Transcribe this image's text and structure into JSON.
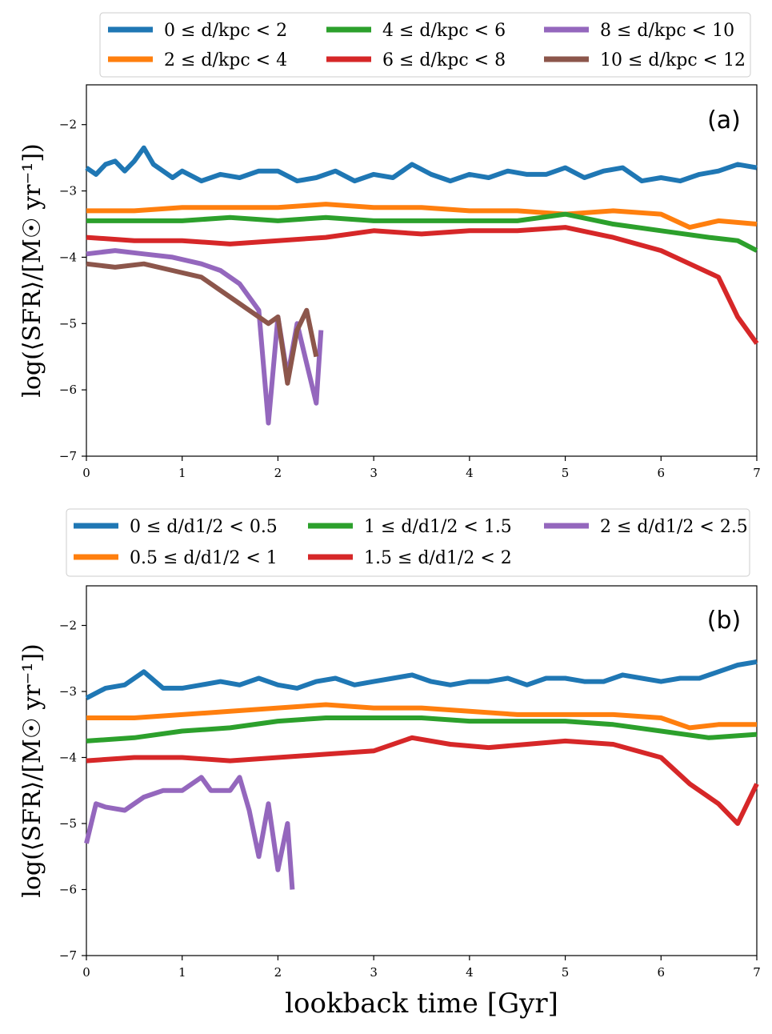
{
  "chart_data": [
    {
      "type": "line",
      "panel_label": "(a)",
      "xlabel": "",
      "ylabel": "log(⟨SFR⟩/[M☉ yr⁻¹])",
      "xlim": [
        0,
        7
      ],
      "ylim": [
        -7,
        -1.4
      ],
      "xticks": [
        "0",
        "1",
        "2",
        "3",
        "4",
        "5",
        "6",
        "7"
      ],
      "yticks": [
        "−7",
        "−6",
        "−5",
        "−4",
        "−3",
        "−2"
      ],
      "legend": "top-outside",
      "series": [
        {
          "name": "0 ≤ d/kpc < 2",
          "color": "#1f77b4",
          "x": [
            0,
            0.1,
            0.2,
            0.3,
            0.4,
            0.5,
            0.6,
            0.7,
            0.8,
            0.9,
            1.0,
            1.2,
            1.4,
            1.6,
            1.8,
            2.0,
            2.2,
            2.4,
            2.6,
            2.8,
            3.0,
            3.2,
            3.4,
            3.6,
            3.8,
            4.0,
            4.2,
            4.4,
            4.6,
            4.8,
            5.0,
            5.2,
            5.4,
            5.6,
            5.8,
            6.0,
            6.2,
            6.4,
            6.6,
            6.8,
            7.0
          ],
          "y": [
            -2.65,
            -2.75,
            -2.6,
            -2.55,
            -2.7,
            -2.55,
            -2.35,
            -2.6,
            -2.7,
            -2.8,
            -2.7,
            -2.85,
            -2.75,
            -2.8,
            -2.7,
            -2.7,
            -2.85,
            -2.8,
            -2.7,
            -2.85,
            -2.75,
            -2.8,
            -2.6,
            -2.75,
            -2.85,
            -2.75,
            -2.8,
            -2.7,
            -2.75,
            -2.75,
            -2.65,
            -2.8,
            -2.7,
            -2.65,
            -2.85,
            -2.8,
            -2.85,
            -2.75,
            -2.7,
            -2.6,
            -2.65
          ]
        },
        {
          "name": "2 ≤ d/kpc < 4",
          "color": "#ff7f0e",
          "x": [
            0,
            0.5,
            1.0,
            1.5,
            2.0,
            2.5,
            3.0,
            3.5,
            4.0,
            4.5,
            5.0,
            5.5,
            6.0,
            6.3,
            6.6,
            7.0
          ],
          "y": [
            -3.3,
            -3.3,
            -3.25,
            -3.25,
            -3.25,
            -3.2,
            -3.25,
            -3.25,
            -3.3,
            -3.3,
            -3.35,
            -3.3,
            -3.35,
            -3.55,
            -3.45,
            -3.5
          ]
        },
        {
          "name": "4 ≤ d/kpc < 6",
          "color": "#2ca02c",
          "x": [
            0,
            0.5,
            1.0,
            1.5,
            2.0,
            2.5,
            3.0,
            3.5,
            4.0,
            4.5,
            5.0,
            5.5,
            6.0,
            6.5,
            6.8,
            7.0
          ],
          "y": [
            -3.45,
            -3.45,
            -3.45,
            -3.4,
            -3.45,
            -3.4,
            -3.45,
            -3.45,
            -3.45,
            -3.45,
            -3.35,
            -3.5,
            -3.6,
            -3.7,
            -3.75,
            -3.9
          ]
        },
        {
          "name": "6 ≤ d/kpc < 8",
          "color": "#d62728",
          "x": [
            0,
            0.5,
            1.0,
            1.5,
            2.0,
            2.5,
            3.0,
            3.5,
            4.0,
            4.5,
            5.0,
            5.5,
            6.0,
            6.3,
            6.6,
            6.8,
            7.0
          ],
          "y": [
            -3.7,
            -3.75,
            -3.75,
            -3.8,
            -3.75,
            -3.7,
            -3.6,
            -3.65,
            -3.6,
            -3.6,
            -3.55,
            -3.7,
            -3.9,
            -4.1,
            -4.3,
            -4.9,
            -5.3
          ]
        },
        {
          "name": "8 ≤ d/kpc < 10",
          "color": "#9467bd",
          "x": [
            0,
            0.3,
            0.6,
            0.9,
            1.2,
            1.4,
            1.6,
            1.8,
            1.9,
            2.0,
            2.1,
            2.2,
            2.3,
            2.4,
            2.45
          ],
          "y": [
            -3.95,
            -3.9,
            -3.95,
            -4.0,
            -4.1,
            -4.2,
            -4.4,
            -4.8,
            -6.5,
            -4.9,
            -5.8,
            -5.0,
            -5.6,
            -6.2,
            -5.1
          ]
        },
        {
          "name": "10 ≤ d/kpc < 12",
          "color": "#8c564b",
          "x": [
            0,
            0.3,
            0.6,
            0.9,
            1.2,
            1.4,
            1.6,
            1.8,
            1.9,
            2.0,
            2.1,
            2.2,
            2.3,
            2.4
          ],
          "y": [
            -4.1,
            -4.15,
            -4.1,
            -4.2,
            -4.3,
            -4.5,
            -4.7,
            -4.9,
            -5.0,
            -4.9,
            -5.9,
            -5.1,
            -4.8,
            -5.5
          ]
        }
      ]
    },
    {
      "type": "line",
      "panel_label": "(b)",
      "xlabel": "lookback time [Gyr]",
      "ylabel": "log(⟨SFR⟩/[M☉ yr⁻¹])",
      "xlim": [
        0,
        7
      ],
      "ylim": [
        -7,
        -1.4
      ],
      "xticks": [
        "0",
        "1",
        "2",
        "3",
        "4",
        "5",
        "6",
        "7"
      ],
      "yticks": [
        "−7",
        "−6",
        "−5",
        "−4",
        "−3",
        "−2"
      ],
      "legend": "top-outside",
      "series": [
        {
          "name": "0 ≤ d/d1/2 < 0.5",
          "color": "#1f77b4",
          "x": [
            0,
            0.2,
            0.4,
            0.6,
            0.8,
            1.0,
            1.2,
            1.4,
            1.6,
            1.8,
            2.0,
            2.2,
            2.4,
            2.6,
            2.8,
            3.0,
            3.2,
            3.4,
            3.6,
            3.8,
            4.0,
            4.2,
            4.4,
            4.6,
            4.8,
            5.0,
            5.2,
            5.4,
            5.6,
            5.8,
            6.0,
            6.2,
            6.4,
            6.6,
            6.8,
            7.0
          ],
          "y": [
            -3.1,
            -2.95,
            -2.9,
            -2.7,
            -2.95,
            -2.95,
            -2.9,
            -2.85,
            -2.9,
            -2.8,
            -2.9,
            -2.95,
            -2.85,
            -2.8,
            -2.9,
            -2.85,
            -2.8,
            -2.75,
            -2.85,
            -2.9,
            -2.85,
            -2.85,
            -2.8,
            -2.9,
            -2.8,
            -2.8,
            -2.85,
            -2.85,
            -2.75,
            -2.8,
            -2.85,
            -2.8,
            -2.8,
            -2.7,
            -2.6,
            -2.55
          ]
        },
        {
          "name": "0.5 ≤ d/d1/2 < 1",
          "color": "#ff7f0e",
          "x": [
            0,
            0.5,
            1.0,
            1.5,
            2.0,
            2.5,
            3.0,
            3.5,
            4.0,
            4.5,
            5.0,
            5.5,
            6.0,
            6.3,
            6.6,
            7.0
          ],
          "y": [
            -3.4,
            -3.4,
            -3.35,
            -3.3,
            -3.25,
            -3.2,
            -3.25,
            -3.25,
            -3.3,
            -3.35,
            -3.35,
            -3.35,
            -3.4,
            -3.55,
            -3.5,
            -3.5
          ]
        },
        {
          "name": "1 ≤ d/d1/2 < 1.5",
          "color": "#2ca02c",
          "x": [
            0,
            0.5,
            1.0,
            1.5,
            2.0,
            2.5,
            3.0,
            3.5,
            4.0,
            4.5,
            5.0,
            5.5,
            6.0,
            6.5,
            7.0
          ],
          "y": [
            -3.75,
            -3.7,
            -3.6,
            -3.55,
            -3.45,
            -3.4,
            -3.4,
            -3.4,
            -3.45,
            -3.45,
            -3.45,
            -3.5,
            -3.6,
            -3.7,
            -3.65
          ]
        },
        {
          "name": "1.5 ≤ d/d1/2 < 2",
          "color": "#d62728",
          "x": [
            0,
            0.5,
            1.0,
            1.5,
            2.0,
            2.5,
            3.0,
            3.4,
            3.8,
            4.2,
            4.6,
            5.0,
            5.5,
            6.0,
            6.3,
            6.6,
            6.8,
            7.0
          ],
          "y": [
            -4.05,
            -4.0,
            -4.0,
            -4.05,
            -4.0,
            -3.95,
            -3.9,
            -3.7,
            -3.8,
            -3.85,
            -3.8,
            -3.75,
            -3.8,
            -4.0,
            -4.4,
            -4.7,
            -5.0,
            -4.4
          ]
        },
        {
          "name": "2 ≤ d/d1/2 < 2.5",
          "color": "#9467bd",
          "x": [
            0,
            0.1,
            0.2,
            0.4,
            0.6,
            0.8,
            1.0,
            1.2,
            1.3,
            1.5,
            1.6,
            1.7,
            1.8,
            1.9,
            2.0,
            2.1,
            2.15
          ],
          "y": [
            -5.3,
            -4.7,
            -4.75,
            -4.8,
            -4.6,
            -4.5,
            -4.5,
            -4.3,
            -4.5,
            -4.5,
            -4.3,
            -4.8,
            -5.5,
            -4.7,
            -5.7,
            -5.0,
            -6.0
          ]
        }
      ]
    }
  ]
}
